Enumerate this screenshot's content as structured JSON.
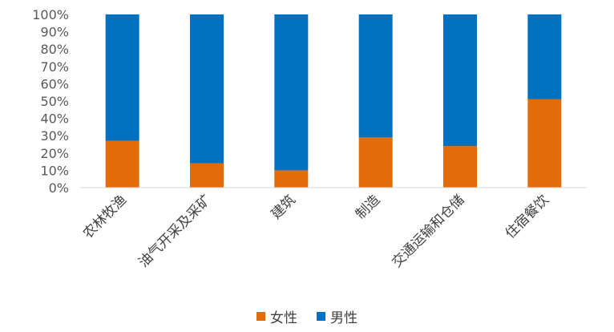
{
  "chart_data": {
    "type": "bar",
    "stacked": "percent",
    "categories": [
      "农林牧渔",
      "油气开采及采矿",
      "建筑",
      "制造",
      "交通运输和仓储",
      "住宿餐饮"
    ],
    "series": [
      {
        "name": "女性",
        "color": "#E36C0A",
        "values": [
          27,
          14,
          10,
          29,
          24,
          51
        ]
      },
      {
        "name": "男性",
        "color": "#0070C0",
        "values": [
          73,
          86,
          90,
          71,
          76,
          49
        ]
      }
    ],
    "y_ticks": [
      "0%",
      "10%",
      "20%",
      "30%",
      "40%",
      "50%",
      "60%",
      "70%",
      "80%",
      "90%",
      "100%"
    ],
    "ylim": [
      0,
      100
    ],
    "grid": false,
    "legend_position": "bottom"
  }
}
